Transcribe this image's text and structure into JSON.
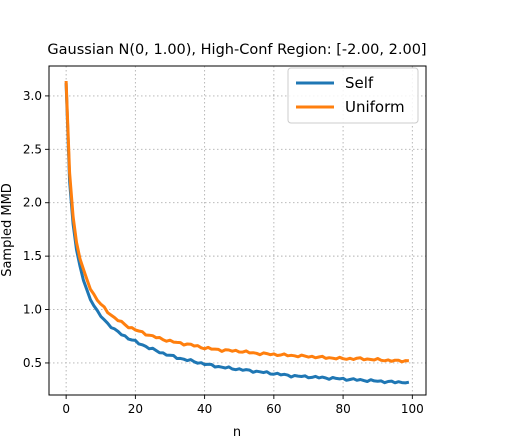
{
  "chart_data": {
    "type": "line",
    "title": "Gaussian N(0, 1.00), High-Conf Region: [-2.00, 2.00]",
    "xlabel": "n",
    "ylabel": "Sampled MMD",
    "xlim": [
      -4.95,
      103.95
    ],
    "ylim": [
      0.2,
      3.28
    ],
    "xticks": [
      0,
      20,
      40,
      60,
      80,
      100
    ],
    "yticks": [
      0.5,
      1.0,
      1.5,
      2.0,
      2.5,
      3.0
    ],
    "xtick_labels": [
      "0",
      "20",
      "40",
      "60",
      "80",
      "100"
    ],
    "ytick_labels": [
      "0.5",
      "1.0",
      "1.5",
      "2.0",
      "2.5",
      "3.0"
    ],
    "grid": true,
    "legend_position": "top-right",
    "series": [
      {
        "name": "Self",
        "color": "#1f77b4",
        "x": [
          0,
          1,
          2,
          3,
          4,
          5,
          6,
          7,
          8,
          9,
          10,
          12,
          14,
          16,
          18,
          20,
          24,
          28,
          32,
          36,
          40,
          45,
          50,
          55,
          60,
          65,
          70,
          75,
          80,
          85,
          90,
          95,
          99
        ],
        "y": [
          3.12,
          2.2,
          1.8,
          1.56,
          1.4,
          1.28,
          1.18,
          1.1,
          1.04,
          0.98,
          0.94,
          0.87,
          0.81,
          0.77,
          0.73,
          0.7,
          0.64,
          0.59,
          0.55,
          0.52,
          0.49,
          0.46,
          0.44,
          0.42,
          0.4,
          0.38,
          0.37,
          0.36,
          0.35,
          0.34,
          0.33,
          0.32,
          0.32
        ]
      },
      {
        "name": "Uniform",
        "color": "#ff7f0e",
        "x": [
          0,
          1,
          2,
          3,
          4,
          5,
          6,
          7,
          8,
          9,
          10,
          12,
          14,
          16,
          18,
          20,
          24,
          28,
          32,
          36,
          40,
          45,
          50,
          55,
          60,
          65,
          70,
          75,
          80,
          85,
          90,
          95,
          99
        ],
        "y": [
          3.14,
          2.28,
          1.87,
          1.63,
          1.48,
          1.37,
          1.28,
          1.2,
          1.14,
          1.09,
          1.05,
          0.98,
          0.92,
          0.88,
          0.84,
          0.81,
          0.76,
          0.72,
          0.69,
          0.67,
          0.64,
          0.62,
          0.61,
          0.59,
          0.58,
          0.57,
          0.56,
          0.55,
          0.54,
          0.54,
          0.53,
          0.52,
          0.52
        ]
      }
    ]
  }
}
